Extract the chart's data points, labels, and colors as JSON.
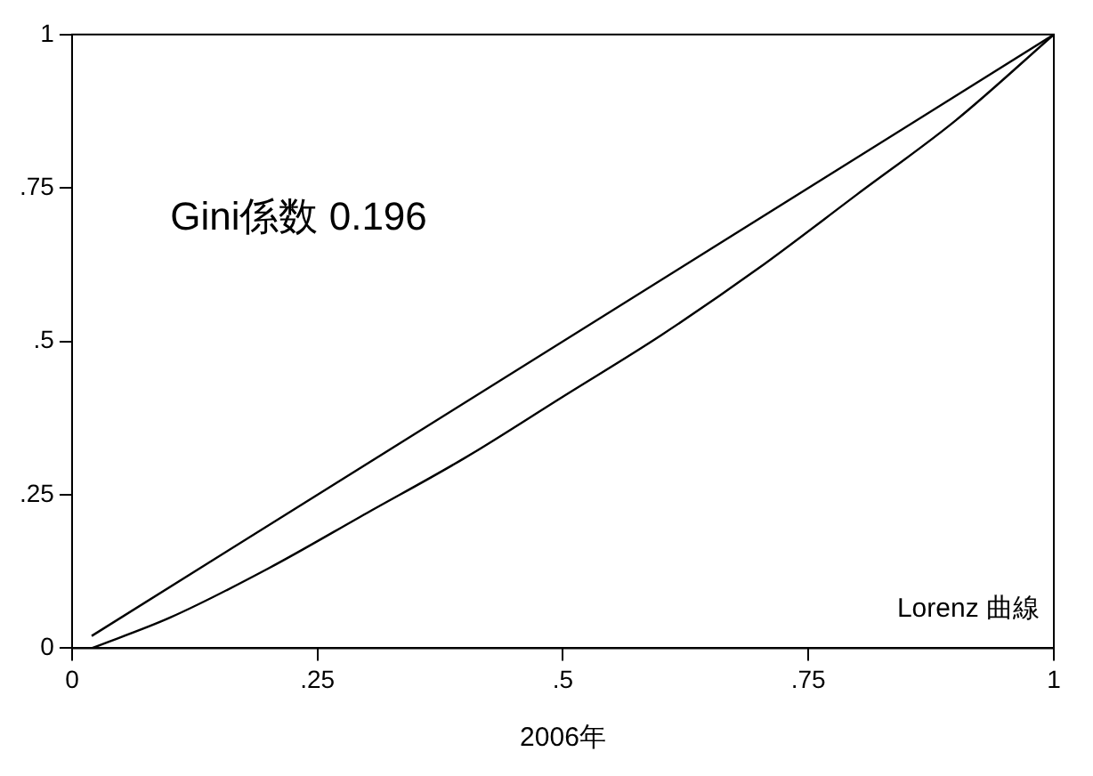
{
  "chart_data": {
    "type": "line",
    "xlabel": "2006年",
    "annotations": [
      "Gini係数 0.196"
    ],
    "series": [
      {
        "color": "#000000",
        "x": [
          0.02,
          1
        ],
        "values": [
          0.02,
          1
        ]
      },
      {
        "name": "Lorenz 曲線",
        "color": "#000000",
        "x": [
          0.02,
          0.1,
          0.2,
          0.3,
          0.4,
          0.5,
          0.6,
          0.7,
          0.8,
          0.9,
          1
        ],
        "values": [
          0,
          0.05,
          0.13,
          0.22,
          0.31,
          0.41,
          0.51,
          0.62,
          0.74,
          0.86,
          1
        ]
      }
    ],
    "xlim": [
      0,
      1
    ],
    "ylim": [
      0,
      1
    ],
    "xticks": [
      0,
      {
        "value": 0.25,
        "label": ".25"
      },
      {
        "value": 0.5,
        "label": ".5"
      },
      {
        "value": 0.75,
        "label": ".75"
      },
      1
    ],
    "yticks": [
      0,
      {
        "value": 0.25,
        "label": ".25"
      },
      {
        "value": 0.5,
        "label": ".5"
      },
      {
        "value": 0.75,
        "label": ".75"
      },
      1
    ],
    "grid": false,
    "legend": false,
    "marker": "none",
    "line_style": "solid"
  }
}
